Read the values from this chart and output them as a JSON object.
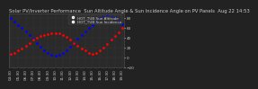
{
  "title": "Solar PV/Inverter Performance  Sun Altitude Angle & Sun Incidence Angle on PV Panels  Aug 22 14:53",
  "legend_labels": [
    "HOT_TUB Sun Altitude",
    "HOT_TUB Sun Incidence"
  ],
  "legend_colors": [
    "#0000ff",
    "#ff0000"
  ],
  "ylim": [
    -20,
    90
  ],
  "yticks": [
    -20,
    0,
    20,
    40,
    60,
    80
  ],
  "background_color": "#222222",
  "plot_bg": "#2a2a2a",
  "grid_color": "#555555",
  "title_color": "#cccccc",
  "tick_color": "#cccccc",
  "title_fontsize": 3.8,
  "tick_fontsize": 3.0,
  "legend_fontsize": 3.0,
  "xlim_min": 0,
  "xlim_max": 30,
  "alt_y": [
    80,
    74,
    67,
    60,
    53,
    46,
    38,
    30,
    22,
    15,
    9,
    5,
    3,
    5,
    9,
    15,
    22,
    30,
    38,
    46,
    53,
    60,
    67,
    74,
    80,
    84,
    86,
    85,
    82,
    76,
    68
  ],
  "inc_y": [
    8,
    10,
    14,
    18,
    24,
    30,
    36,
    40,
    44,
    46,
    48,
    50,
    50,
    49,
    46,
    42,
    36,
    30,
    24,
    18,
    14,
    10,
    8,
    10,
    14,
    20,
    28,
    36,
    44,
    52,
    60
  ],
  "xtick_labels": [
    "04:30",
    "05:00",
    "05:30",
    "06:00",
    "06:30",
    "07:00",
    "07:30",
    "08:00",
    "08:30",
    "09:00",
    "09:30",
    "10:00",
    "10:30",
    "11:00",
    "11:30",
    "12:00",
    "12:30",
    "13:00",
    "13:30",
    "14:00",
    "14:30",
    "15:00",
    "15:30",
    "16:00",
    "16:30",
    "17:00",
    "17:30",
    "18:00",
    "18:30",
    "19:00",
    "19:30"
  ]
}
